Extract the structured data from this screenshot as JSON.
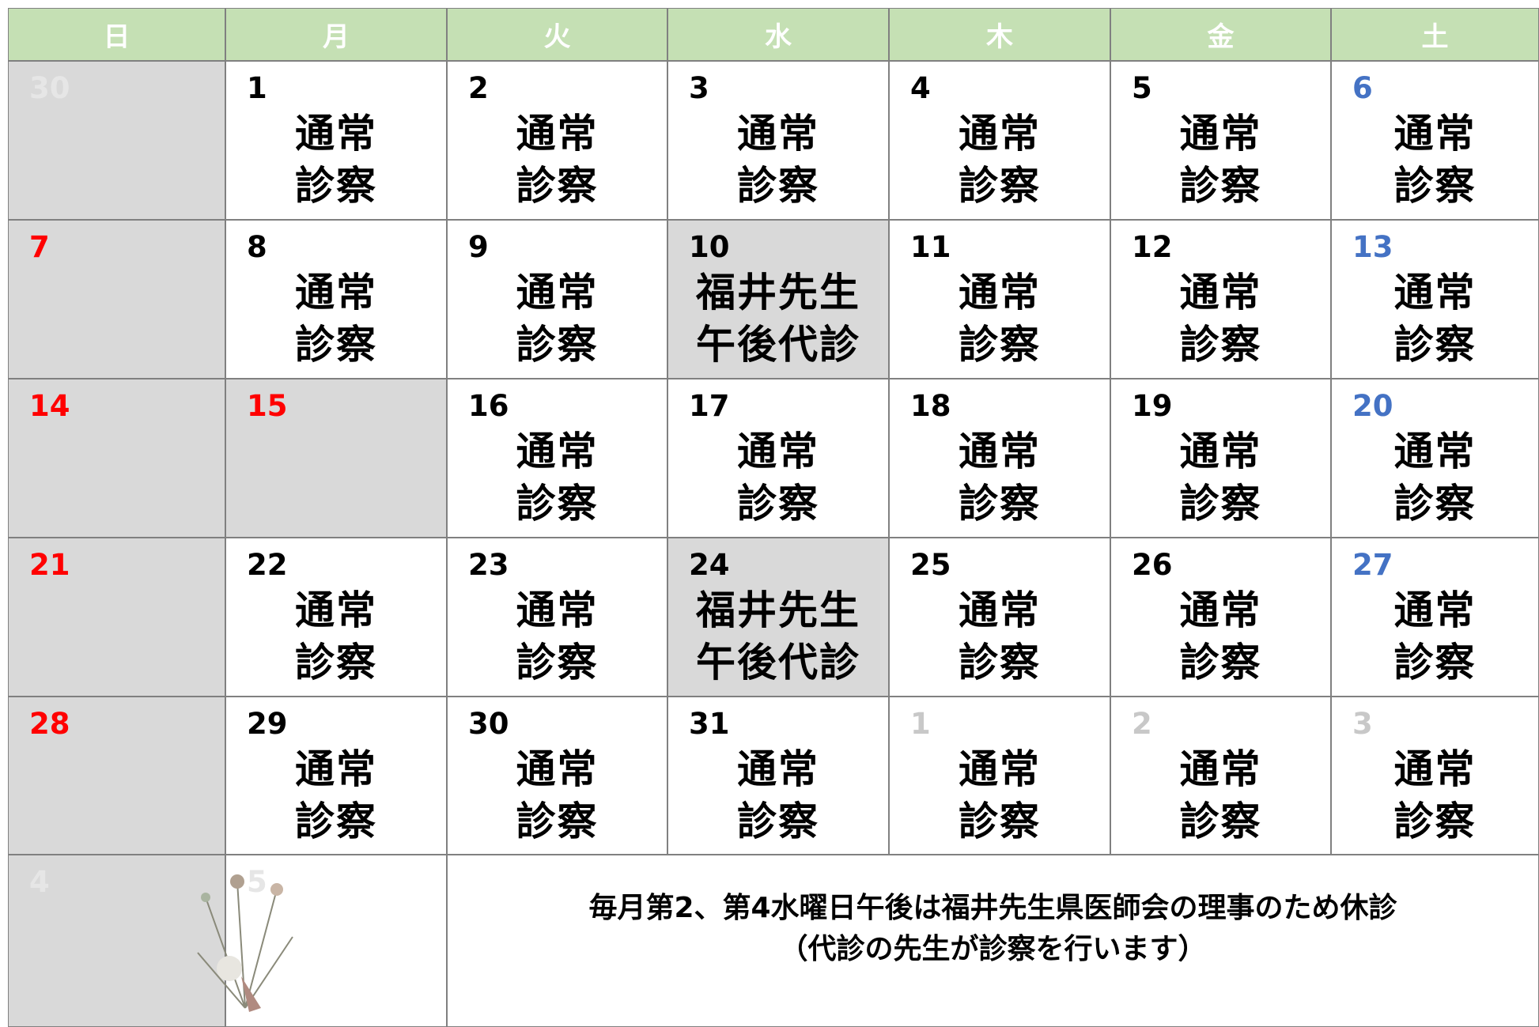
{
  "header": {
    "days": [
      "日",
      "月",
      "火",
      "水",
      "木",
      "金",
      "土"
    ],
    "bg": "#c5e0b4",
    "color": "#ffffff"
  },
  "weeks": [
    [
      {
        "date": "30",
        "color": "#e6e6e6",
        "bg": "#d9d9d9"
      },
      {
        "date": "1",
        "lines": [
          "通常",
          "診察"
        ]
      },
      {
        "date": "2",
        "lines": [
          "通常",
          "診察"
        ]
      },
      {
        "date": "3",
        "lines": [
          "通常",
          "診察"
        ]
      },
      {
        "date": "4",
        "lines": [
          "通常",
          "診察"
        ]
      },
      {
        "date": "5",
        "lines": [
          "通常",
          "診察"
        ]
      },
      {
        "date": "6",
        "color": "#4472c4",
        "lines": [
          "通常",
          "診察"
        ]
      }
    ],
    [
      {
        "date": "7",
        "color": "#ff0000",
        "bg": "#d9d9d9"
      },
      {
        "date": "8",
        "lines": [
          "通常",
          "診察"
        ]
      },
      {
        "date": "9",
        "lines": [
          "通常",
          "診察"
        ]
      },
      {
        "date": "10",
        "bg": "#d9d9d9",
        "lines": [
          "福井先生",
          "午後代診"
        ]
      },
      {
        "date": "11",
        "lines": [
          "通常",
          "診察"
        ]
      },
      {
        "date": "12",
        "lines": [
          "通常",
          "診察"
        ]
      },
      {
        "date": "13",
        "color": "#4472c4",
        "lines": [
          "通常",
          "診察"
        ]
      }
    ],
    [
      {
        "date": "14",
        "color": "#ff0000",
        "bg": "#d9d9d9"
      },
      {
        "date": "15",
        "color": "#ff0000",
        "bg": "#d9d9d9"
      },
      {
        "date": "16",
        "lines": [
          "通常",
          "診察"
        ]
      },
      {
        "date": "17",
        "lines": [
          "通常",
          "診察"
        ]
      },
      {
        "date": "18",
        "lines": [
          "通常",
          "診察"
        ]
      },
      {
        "date": "19",
        "lines": [
          "通常",
          "診察"
        ]
      },
      {
        "date": "20",
        "color": "#4472c4",
        "lines": [
          "通常",
          "診察"
        ]
      }
    ],
    [
      {
        "date": "21",
        "color": "#ff0000",
        "bg": "#d9d9d9"
      },
      {
        "date": "22",
        "lines": [
          "通常",
          "診察"
        ]
      },
      {
        "date": "23",
        "lines": [
          "通常",
          "診察"
        ]
      },
      {
        "date": "24",
        "bg": "#d9d9d9",
        "lines": [
          "福井先生",
          "午後代診"
        ]
      },
      {
        "date": "25",
        "lines": [
          "通常",
          "診察"
        ]
      },
      {
        "date": "26",
        "lines": [
          "通常",
          "診察"
        ]
      },
      {
        "date": "27",
        "color": "#4472c4",
        "lines": [
          "通常",
          "診察"
        ]
      }
    ],
    [
      {
        "date": "28",
        "color": "#ff0000",
        "bg": "#d9d9d9"
      },
      {
        "date": "29",
        "lines": [
          "通常",
          "診察"
        ]
      },
      {
        "date": "30",
        "lines": [
          "通常",
          "診察"
        ]
      },
      {
        "date": "31",
        "lines": [
          "通常",
          "診察"
        ]
      },
      {
        "date": "1",
        "color": "#c8c8c8",
        "lines": [
          "通常",
          "診察"
        ]
      },
      {
        "date": "2",
        "color": "#c8c8c8",
        "lines": [
          "通常",
          "診察"
        ]
      },
      {
        "date": "3",
        "color": "#c8c8c8",
        "lines": [
          "通常",
          "診察"
        ]
      }
    ],
    [
      {
        "date": "4",
        "color": "#e6e6e6",
        "bg": "#d9d9d9"
      },
      {
        "date": "5",
        "color": "#e6e6e6"
      }
    ]
  ],
  "note": {
    "lines": [
      "毎月第2、第4水曜日午後は福井先生県医師会の理事のため休診",
      "（代診の先生が診察を行います）"
    ]
  }
}
